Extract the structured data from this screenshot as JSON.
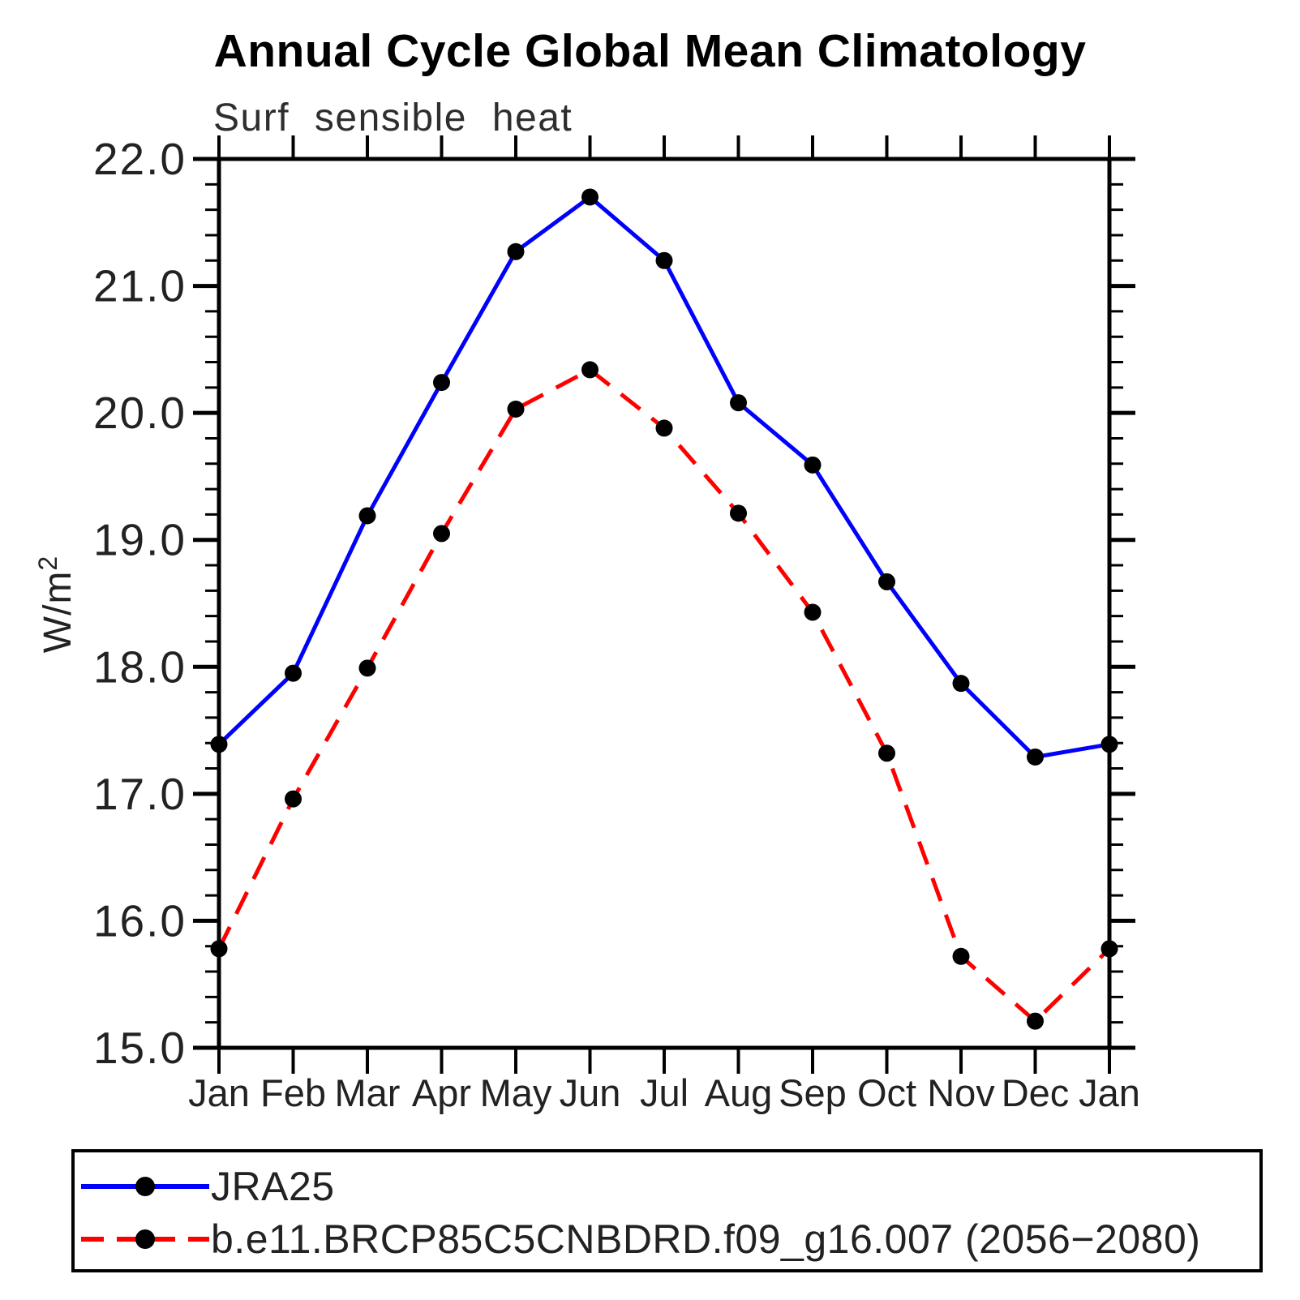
{
  "chart_data": {
    "type": "line",
    "title": "Annual Cycle Global Mean Climatology",
    "subtitle": "Surf sensible heat",
    "ylabel": "W/m²",
    "xlabel": "",
    "categories": [
      "Jan",
      "Feb",
      "Mar",
      "Apr",
      "May",
      "Jun",
      "Jul",
      "Aug",
      "Sep",
      "Oct",
      "Nov",
      "Dec",
      "Jan"
    ],
    "ylim": [
      15.0,
      22.0
    ],
    "ytick_step": 1.0,
    "yminor_step": 0.2,
    "ytick_labels": [
      "15.0",
      "16.0",
      "17.0",
      "18.0",
      "19.0",
      "20.0",
      "21.0",
      "22.0"
    ],
    "grid": "off",
    "legend_position": "bottom-left-box",
    "axis_color": "#000000",
    "series": [
      {
        "name": "JRA25",
        "color": "#0000ff",
        "style": "solid",
        "marker": "filled-circle",
        "marker_color": "#000000",
        "values": [
          17.39,
          17.95,
          19.19,
          20.24,
          21.27,
          21.7,
          21.2,
          20.08,
          19.59,
          18.67,
          17.87,
          17.29,
          17.39
        ]
      },
      {
        "name": "b.e11.BRCP85C5CNBDRD.f09_g16.007 (2056−2080)",
        "color": "#ff0000",
        "style": "dashed",
        "marker": "filled-circle",
        "marker_color": "#000000",
        "values": [
          15.78,
          16.96,
          17.99,
          19.05,
          20.03,
          20.34,
          19.88,
          19.21,
          18.43,
          17.32,
          15.72,
          15.21,
          15.78
        ]
      }
    ]
  }
}
